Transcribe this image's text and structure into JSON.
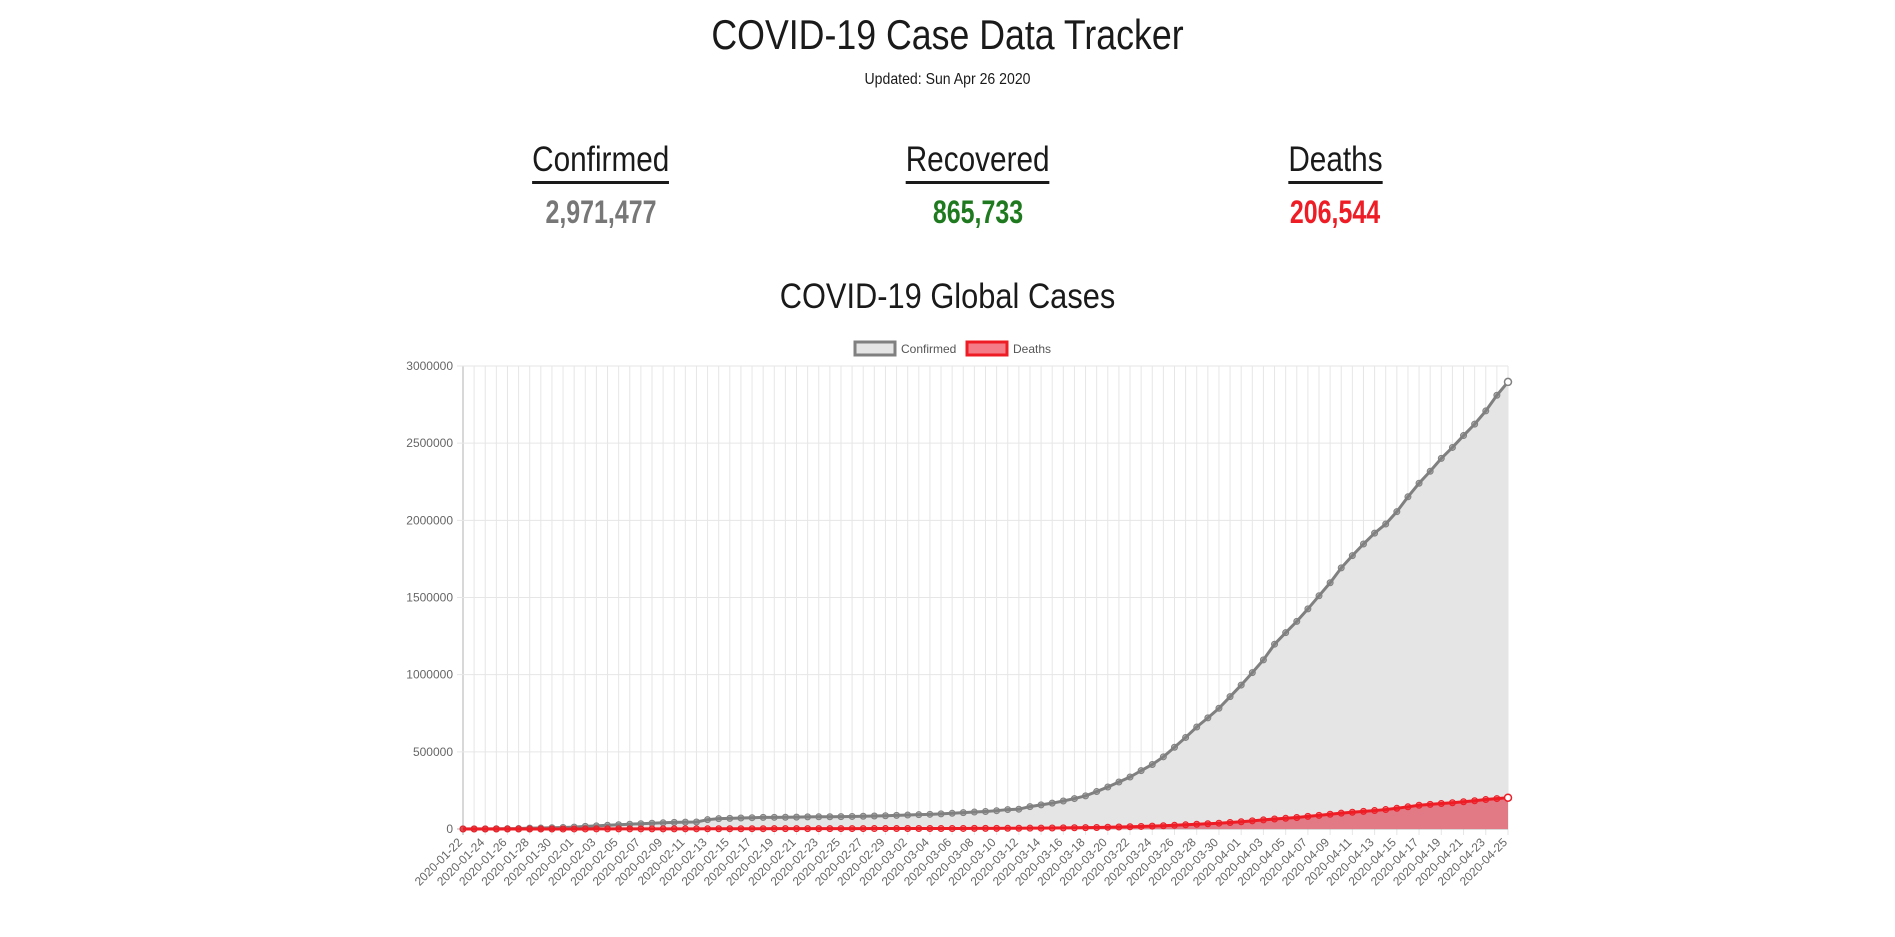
{
  "header": {
    "title": "COVID-19 Case Data Tracker",
    "updated": "Updated: Sun Apr 26 2020"
  },
  "stats": {
    "confirmed": {
      "label": "Confirmed",
      "value": "2,971,477",
      "color": "#777777"
    },
    "recovered": {
      "label": "Recovered",
      "value": "865,733",
      "color": "#1f7a1f"
    },
    "deaths": {
      "label": "Deaths",
      "value": "206,544",
      "color": "#ee1c25"
    }
  },
  "chart_data": {
    "type": "area",
    "title": "COVID-19 Global Cases",
    "xlabel": "",
    "ylabel": "",
    "ylim": [
      0,
      3000000
    ],
    "yticks": [
      0,
      500000,
      1000000,
      1500000,
      2000000,
      2500000,
      3000000
    ],
    "legend_position": "top",
    "grid": true,
    "x_start": "2020-01-22",
    "x_end": "2020-04-25",
    "x_tick_labels": [
      "2020-01-22",
      "2020-01-24",
      "2020-01-26",
      "2020-01-28",
      "2020-01-30",
      "2020-02-01",
      "2020-02-03",
      "2020-02-05",
      "2020-02-07",
      "2020-02-09",
      "2020-02-11",
      "2020-02-13",
      "2020-02-15",
      "2020-02-17",
      "2020-02-19",
      "2020-02-21",
      "2020-02-23",
      "2020-02-25",
      "2020-02-27",
      "2020-02-29",
      "2020-03-02",
      "2020-03-04",
      "2020-03-06",
      "2020-03-08",
      "2020-03-10",
      "2020-03-12",
      "2020-03-14",
      "2020-03-16",
      "2020-03-18",
      "2020-03-20",
      "2020-03-22",
      "2020-03-24",
      "2020-03-26",
      "2020-03-28",
      "2020-03-30",
      "2020-04-01",
      "2020-04-03",
      "2020-04-05",
      "2020-04-07",
      "2020-04-09",
      "2020-04-11",
      "2020-04-13",
      "2020-04-15",
      "2020-04-17",
      "2020-04-19",
      "2020-04-21",
      "2020-04-23",
      "2020-04-25"
    ],
    "series": [
      {
        "name": "Confirmed",
        "line_color": "#808080",
        "fill_color": "#e5e5e5",
        "legend_fill": "#e5e5e5",
        "values": [
          555,
          654,
          941,
          1434,
          2118,
          2927,
          5578,
          6166,
          8234,
          9927,
          12038,
          16787,
          19881,
          23892,
          27635,
          30794,
          34391,
          37120,
          40150,
          42762,
          44802,
          45221,
          60368,
          66885,
          69030,
          71224,
          73258,
          75136,
          75639,
          76197,
          76819,
          78572,
          78958,
          79561,
          80406,
          81388,
          82746,
          84112,
          86011,
          88369,
          90306,
          92840,
          95120,
          97886,
          101801,
          105847,
          109821,
          113590,
          118620,
          125875,
          128352,
          145205,
          156101,
          167454,
          181574,
          197102,
          214821,
          242570,
          272208,
          304507,
          336953,
          378235,
          418045,
          467653,
          529591,
          593291,
          660706,
          720117,
          782365,
          857487,
          932605,
          1013157,
          1095917,
          1197405,
          1272115,
          1345101,
          1426096,
          1511104,
          1595350,
          1691719,
          1771514,
          1846680,
          1917320,
          1976192,
          2056054,
          2152437,
          2240191,
          2317759,
          2401379,
          2472259,
          2549294,
          2623415,
          2708885,
          2810325,
          2896746
        ]
      },
      {
        "name": "Deaths",
        "line_color": "#ee1c25",
        "fill_color": "#e27a85",
        "legend_fill": "#f47c88",
        "values": [
          17,
          18,
          26,
          42,
          56,
          82,
          131,
          133,
          171,
          213,
          259,
          362,
          426,
          492,
          564,
          634,
          719,
          806,
          906,
          1013,
          1113,
          1118,
          1371,
          1523,
          1666,
          1770,
          1868,
          2007,
          2122,
          2247,
          2251,
          2458,
          2469,
          2629,
          2708,
          2770,
          2814,
          2872,
          2941,
          2996,
          3085,
          3160,
          3254,
          3348,
          3460,
          3558,
          3802,
          3988,
          4262,
          4615,
          4720,
          5404,
          5819,
          6440,
          7126,
          7905,
          8733,
          9867,
          11299,
          12973,
          14623,
          16497,
          18615,
          21181,
          23970,
          27198,
          30652,
          33925,
          37582,
          42107,
          46809,
          52983,
          58787,
          64606,
          69374,
          74565,
          81865,
          88338,
          95455,
          102525,
          108503,
          114090,
          119481,
          125983,
          134177,
          143800,
          153821,
          159509,
          165069,
          169985,
          176583,
          183066,
          190858,
          197159,
          202846
        ]
      }
    ]
  }
}
